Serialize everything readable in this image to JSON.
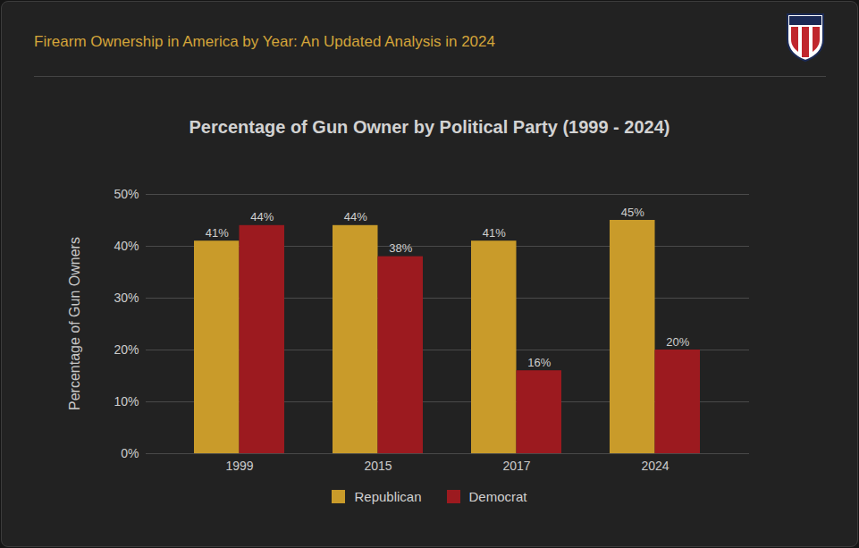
{
  "chart_data": {
    "type": "bar",
    "subtitle": "Firearm Ownership in America by Year: An Updated Analysis in 2024",
    "title": "Percentage of Gun Owner by Political Party (1999 - 2024)",
    "ylabel": "Percentage of Gun Owners",
    "categories": [
      "1999",
      "2015",
      "2017",
      "2024"
    ],
    "series": [
      {
        "name": "Republican",
        "color": "#c99b2a",
        "values": [
          41,
          44,
          41,
          45
        ],
        "value_labels": [
          "41%",
          "44%",
          "41%",
          "45%"
        ]
      },
      {
        "name": "Democrat",
        "color": "#9c1a1f",
        "values": [
          44,
          38,
          16,
          20
        ],
        "value_labels": [
          "44%",
          "38%",
          "16%",
          "20%"
        ]
      }
    ],
    "ylim": [
      0,
      50
    ],
    "yticks": [
      {
        "value": 0,
        "label": "0%"
      },
      {
        "value": 10,
        "label": "10%"
      },
      {
        "value": 20,
        "label": "20%"
      },
      {
        "value": 30,
        "label": "30%"
      },
      {
        "value": 40,
        "label": "40%"
      },
      {
        "value": 50,
        "label": "50%"
      }
    ],
    "grid": true,
    "data_labels": true,
    "legend": "bottom"
  }
}
